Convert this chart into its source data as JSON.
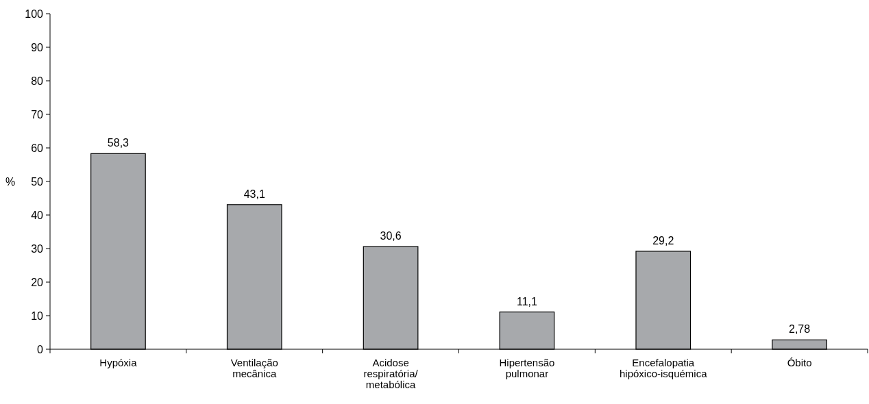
{
  "chart_data": {
    "type": "bar",
    "ylabel": "%",
    "categories": [
      "Hypóxia",
      "Ventilação\nmecânica",
      "Acidose\nrespiratória/\nmetabólica",
      "Hipertensão\npulmonar",
      "Encefalopatia\nhipóxico-isquémica",
      "Óbito"
    ],
    "values": [
      58.3,
      43.1,
      30.6,
      11.1,
      29.2,
      2.78
    ],
    "value_labels": [
      "58,3",
      "43,1",
      "30,6",
      "11,1",
      "29,2",
      "2,78"
    ],
    "color": "#a7a9ac",
    "ylim": [
      0,
      100
    ],
    "yticks": [
      0,
      10,
      20,
      30,
      40,
      50,
      60,
      70,
      80,
      90,
      100
    ]
  }
}
